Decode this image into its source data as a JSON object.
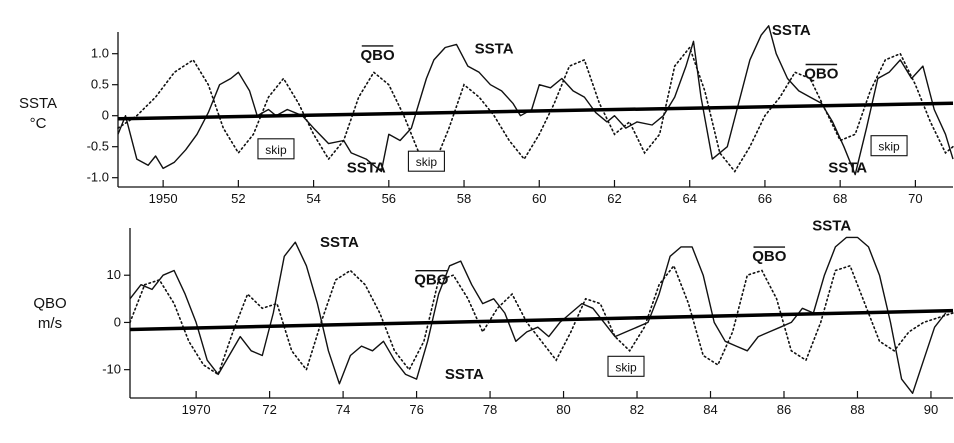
{
  "chart_data": [
    {
      "type": "line",
      "ylabel_lines": [
        "SSTA",
        "°C"
      ],
      "xlim": [
        1948.8,
        1971
      ],
      "ylim": [
        -1.15,
        1.35
      ],
      "yticks": [
        1.0,
        0.5,
        0,
        -0.5,
        -1.0
      ],
      "ytick_labels": [
        "1.0",
        "0.5",
        "0",
        "-0.5",
        "-1.0"
      ],
      "xticks": [
        1950,
        1952,
        1954,
        1956,
        1958,
        1960,
        1962,
        1964,
        1966,
        1968,
        1970
      ],
      "xtick_labels": [
        "1950",
        "52",
        "54",
        "56",
        "58",
        "60",
        "62",
        "64",
        "66",
        "68",
        "70"
      ],
      "trend": {
        "x": [
          1948.8,
          1971
        ],
        "y": [
          -0.05,
          0.2
        ]
      },
      "series": [
        {
          "name": "SSTA",
          "style": "solid",
          "x": [
            1948.8,
            1949.0,
            1949.3,
            1949.6,
            1949.8,
            1950.0,
            1950.3,
            1950.6,
            1950.9,
            1951.2,
            1951.5,
            1951.8,
            1952.0,
            1952.3,
            1952.5,
            1952.8,
            1953.0,
            1953.3,
            1953.7,
            1954.0,
            1954.4,
            1954.8,
            1955.0,
            1955.4,
            1955.8,
            1956.0,
            1956.3,
            1956.6,
            1957.0,
            1957.2,
            1957.5,
            1957.8,
            1958.1,
            1958.4,
            1958.7,
            1959.0,
            1959.3,
            1959.5,
            1959.8,
            1960.0,
            1960.3,
            1960.6,
            1960.9,
            1961.2,
            1961.5,
            1961.8,
            1962.0,
            1962.3,
            1962.6,
            1963.0,
            1963.3,
            1963.6,
            1963.9,
            1964.1,
            1964.3,
            1964.6,
            1965.0,
            1965.3,
            1965.6,
            1965.9,
            1966.1,
            1966.3,
            1966.6,
            1966.9,
            1967.2,
            1967.5,
            1967.8,
            1968.1,
            1968.4,
            1968.7,
            1969.0,
            1969.3,
            1969.6,
            1969.9,
            1970.2,
            1970.5,
            1970.8,
            1971.0
          ],
          "y": [
            -0.3,
            0.0,
            -0.7,
            -0.8,
            -0.65,
            -0.85,
            -0.75,
            -0.55,
            -0.3,
            0.05,
            0.5,
            0.6,
            0.7,
            0.4,
            0.0,
            0.1,
            0.0,
            0.1,
            0.0,
            -0.2,
            -0.45,
            -0.4,
            -0.6,
            -0.7,
            -0.9,
            -0.3,
            -0.4,
            -0.2,
            0.6,
            0.9,
            1.1,
            1.15,
            0.8,
            0.7,
            0.5,
            0.4,
            0.2,
            0.0,
            0.1,
            0.5,
            0.45,
            0.6,
            0.4,
            0.3,
            0.05,
            -0.1,
            0.0,
            -0.2,
            -0.1,
            -0.15,
            0.0,
            0.3,
            0.8,
            1.2,
            0.3,
            -0.7,
            -0.5,
            0.2,
            0.9,
            1.3,
            1.45,
            1.0,
            0.6,
            0.4,
            0.3,
            0.2,
            -0.1,
            -0.5,
            -0.95,
            -0.2,
            0.6,
            0.7,
            0.9,
            0.6,
            0.8,
            0.1,
            -0.3,
            -0.7
          ]
        },
        {
          "name": "QBO",
          "style": "dotted",
          "x": [
            1948.8,
            1949.3,
            1949.8,
            1950.3,
            1950.8,
            1951.2,
            1951.6,
            1952.0,
            1952.4,
            1952.8,
            1953.2,
            1953.6,
            1954.0,
            1954.4,
            1954.8,
            1955.2,
            1955.6,
            1956.0,
            1956.4,
            1956.8,
            1957.2,
            1957.6,
            1958.0,
            1958.4,
            1958.8,
            1959.2,
            1959.6,
            1960.0,
            1960.4,
            1960.8,
            1961.2,
            1961.6,
            1962.0,
            1962.4,
            1962.8,
            1963.2,
            1963.6,
            1964.0,
            1964.4,
            1964.8,
            1965.2,
            1965.6,
            1966.0,
            1966.4,
            1966.8,
            1967.2,
            1967.6,
            1968.0,
            1968.4,
            1968.8,
            1969.2,
            1969.6,
            1970.0,
            1970.4,
            1970.8,
            1971.0
          ],
          "y": [
            -0.2,
            0.0,
            0.3,
            0.7,
            0.9,
            0.5,
            -0.2,
            -0.6,
            -0.3,
            0.3,
            0.6,
            0.2,
            -0.3,
            -0.7,
            -0.4,
            0.3,
            0.7,
            0.5,
            0.0,
            -0.6,
            -0.8,
            -0.2,
            0.5,
            0.3,
            0.0,
            -0.4,
            -0.7,
            -0.3,
            0.2,
            0.8,
            0.9,
            0.2,
            -0.3,
            -0.1,
            -0.6,
            -0.3,
            0.8,
            1.1,
            0.4,
            -0.6,
            -0.9,
            -0.5,
            0.0,
            0.3,
            0.7,
            0.6,
            0.1,
            -0.4,
            -0.3,
            0.4,
            0.9,
            1.0,
            0.5,
            -0.1,
            -0.6,
            -0.5
          ]
        }
      ],
      "annotations": [
        {
          "text": "QBO",
          "overline": true,
          "x": 1955.7,
          "y": 0.9
        },
        {
          "text": "SSTA",
          "x": 1958.8,
          "y": 1.0
        },
        {
          "text": "SSTA",
          "x": 1966.7,
          "y": 1.3
        },
        {
          "text": "QBO",
          "overline": true,
          "x": 1967.5,
          "y": 0.6
        },
        {
          "text": "SSTA",
          "x": 1955.4,
          "y": -0.92
        },
        {
          "text": "SSTA",
          "x": 1968.2,
          "y": -0.92
        }
      ],
      "skip_boxes": [
        {
          "text": "skip",
          "x": 1953.0,
          "y": -0.55
        },
        {
          "text": "skip",
          "x": 1957.0,
          "y": -0.75
        },
        {
          "text": "skip",
          "x": 1969.3,
          "y": -0.5
        }
      ]
    },
    {
      "type": "line",
      "ylabel_lines": [
        "QBO",
        "m/s"
      ],
      "xlim": [
        1968.2,
        1990.6
      ],
      "ylim": [
        -16,
        20
      ],
      "yticks": [
        10,
        0,
        -10
      ],
      "ytick_labels": [
        "10",
        "0",
        "-10"
      ],
      "xticks": [
        1970,
        1972,
        1974,
        1976,
        1978,
        1980,
        1982,
        1984,
        1986,
        1988,
        1990
      ],
      "xtick_labels": [
        "1970",
        "72",
        "74",
        "76",
        "78",
        "80",
        "82",
        "84",
        "86",
        "88",
        "90"
      ],
      "trend": {
        "x": [
          1968.2,
          1990.6
        ],
        "y": [
          -1.5,
          2.5
        ]
      },
      "series": [
        {
          "name": "SSTA",
          "style": "solid",
          "x": [
            1968.2,
            1968.5,
            1968.8,
            1969.1,
            1969.4,
            1969.7,
            1970.0,
            1970.3,
            1970.6,
            1970.9,
            1971.2,
            1971.5,
            1971.8,
            1972.1,
            1972.4,
            1972.7,
            1973.0,
            1973.3,
            1973.6,
            1973.9,
            1974.2,
            1974.5,
            1974.8,
            1975.1,
            1975.4,
            1975.7,
            1976.0,
            1976.3,
            1976.6,
            1976.9,
            1977.2,
            1977.5,
            1977.8,
            1978.1,
            1978.4,
            1978.7,
            1979.0,
            1979.3,
            1979.6,
            1979.9,
            1980.2,
            1980.5,
            1980.8,
            1981.1,
            1981.4,
            1981.7,
            1982.0,
            1982.3,
            1982.6,
            1982.9,
            1983.2,
            1983.5,
            1983.8,
            1984.1,
            1984.4,
            1984.7,
            1985.0,
            1985.3,
            1985.6,
            1985.9,
            1986.2,
            1986.5,
            1986.8,
            1987.1,
            1987.4,
            1987.7,
            1988.0,
            1988.3,
            1988.6,
            1988.9,
            1989.2,
            1989.5,
            1989.8,
            1990.1,
            1990.4
          ],
          "y": [
            5,
            8,
            7,
            10,
            11,
            6,
            0,
            -8,
            -11,
            -7,
            -3,
            -6,
            -7,
            2,
            14,
            17,
            12,
            4,
            -6,
            -13,
            -7,
            -5,
            -6,
            -4,
            -8,
            -11,
            -12,
            -4,
            6,
            12,
            13,
            8,
            4,
            5,
            2,
            -4,
            -2,
            -1,
            -3,
            0,
            2,
            4,
            3,
            0,
            -3,
            -2,
            -1,
            0,
            6,
            14,
            16,
            16,
            10,
            0,
            -4,
            -5,
            -6,
            -3,
            -2,
            -1,
            0,
            3,
            2,
            10,
            16,
            18,
            18,
            16,
            10,
            0,
            -12,
            -15,
            -8,
            -1,
            2
          ]
        },
        {
          "name": "QBO",
          "style": "dotted",
          "x": [
            1968.2,
            1968.6,
            1969.0,
            1969.4,
            1969.8,
            1970.2,
            1970.6,
            1971.0,
            1971.4,
            1971.8,
            1972.2,
            1972.6,
            1973.0,
            1973.4,
            1973.8,
            1974.2,
            1974.6,
            1975.0,
            1975.4,
            1975.8,
            1976.2,
            1976.6,
            1977.0,
            1977.4,
            1977.8,
            1978.2,
            1978.6,
            1979.0,
            1979.4,
            1979.8,
            1980.2,
            1980.6,
            1981.0,
            1981.4,
            1981.8,
            1982.2,
            1982.6,
            1983.0,
            1983.4,
            1983.8,
            1984.2,
            1984.6,
            1985.0,
            1985.4,
            1985.8,
            1986.2,
            1986.6,
            1987.0,
            1987.4,
            1987.8,
            1988.2,
            1988.6,
            1989.0,
            1989.4,
            1989.8,
            1990.2,
            1990.6
          ],
          "y": [
            0,
            8,
            9,
            4,
            -4,
            -9,
            -11,
            -2,
            6,
            3,
            4,
            -6,
            -10,
            0,
            9,
            11,
            8,
            2,
            -6,
            -10,
            -4,
            9,
            10,
            5,
            -2,
            3,
            6,
            0,
            -4,
            -8,
            -2,
            5,
            4,
            -3,
            -6,
            -1,
            8,
            12,
            4,
            -7,
            -9,
            -2,
            10,
            11,
            5,
            -6,
            -8,
            0,
            11,
            12,
            4,
            -4,
            -6,
            -2,
            0,
            1,
            2
          ]
        }
      ],
      "annotations": [
        {
          "text": "SSTA",
          "x": 1973.9,
          "y": 16
        },
        {
          "text": "QBO",
          "overline": true,
          "x": 1976.4,
          "y": 8
        },
        {
          "text": "SSTA",
          "x": 1977.3,
          "y": -12
        },
        {
          "text": "QBO",
          "overline": true,
          "x": 1985.6,
          "y": 13
        },
        {
          "text": "SSTA",
          "x": 1987.3,
          "y": 19.5
        }
      ],
      "skip_boxes": [
        {
          "text": "skip",
          "x": 1981.7,
          "y": -9.5
        }
      ]
    }
  ]
}
